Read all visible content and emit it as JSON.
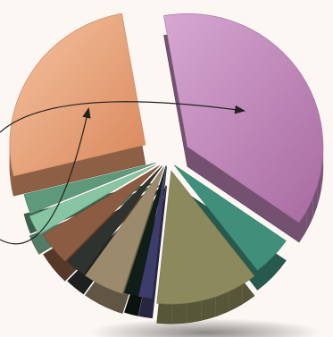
{
  "chart_data": {
    "type": "pie",
    "style": "3d-exploded",
    "title": "",
    "slices": [
      {
        "id": "violet",
        "value": 46,
        "color": "#bd82b6"
      },
      {
        "id": "teal",
        "value": 6,
        "color": "#3f8f7a"
      },
      {
        "id": "olive",
        "value": 15,
        "color": "#8c8a5c"
      },
      {
        "id": "navy",
        "value": 2,
        "color": "#3d3d6b"
      },
      {
        "id": "black",
        "value": 2,
        "color": "#0f1e16"
      },
      {
        "id": "tan",
        "value": 6,
        "color": "#9c8a6c"
      },
      {
        "id": "charcoal",
        "value": 3,
        "color": "#2e3330"
      },
      {
        "id": "brown",
        "value": 5,
        "color": "#8b5c42"
      },
      {
        "id": "mint",
        "value": 3,
        "color": "#88c6a3"
      },
      {
        "id": "sage",
        "value": 3,
        "color": "#5f997b"
      },
      {
        "id": "peach",
        "value": 32,
        "color": "#e49a6d"
      }
    ],
    "annotations": [
      {
        "type": "arrow",
        "from": "left-edge",
        "to": "violet"
      },
      {
        "type": "arrow",
        "from": "left-edge",
        "to": "peach"
      }
    ],
    "legend": "none",
    "data_labels": "none"
  }
}
